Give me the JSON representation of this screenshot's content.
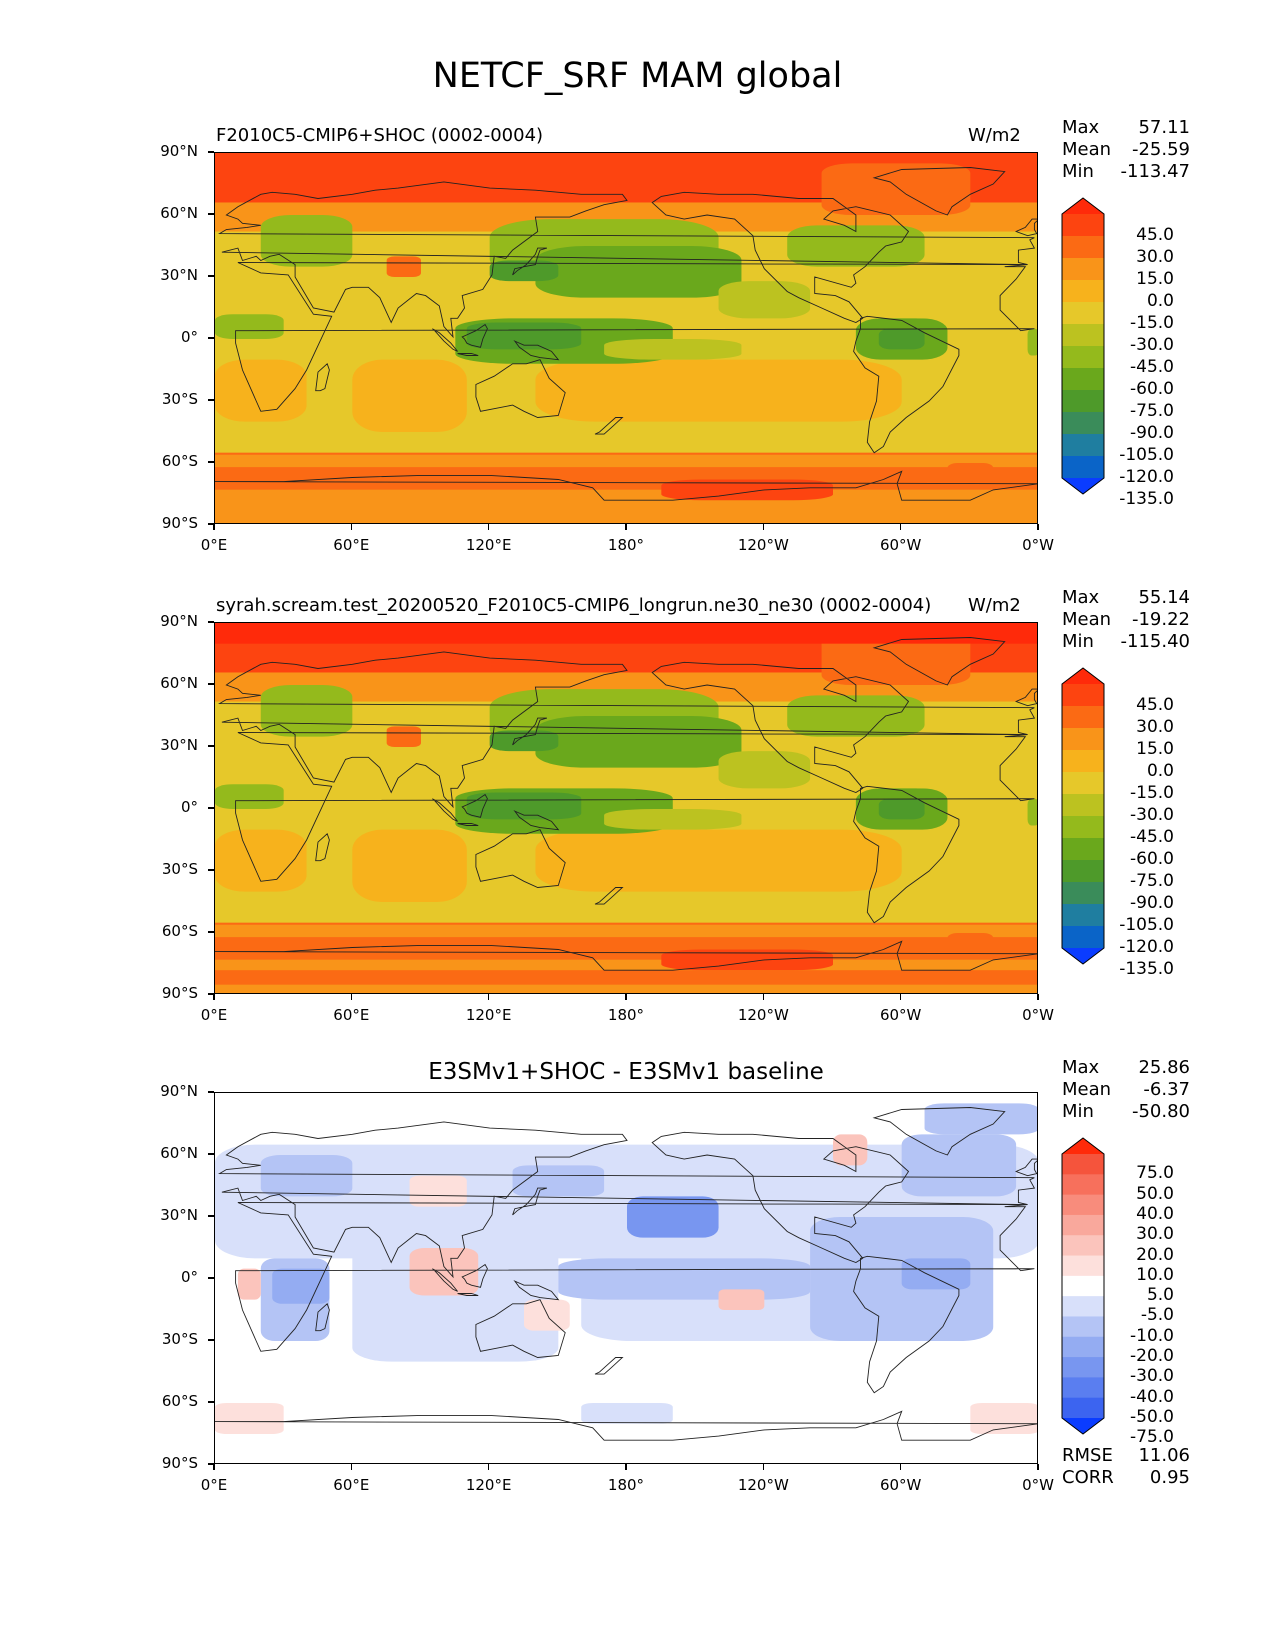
{
  "figure": {
    "suptitle": "NETCF_SRF MAM global"
  },
  "axes": {
    "x_ticks": [
      "0°E",
      "60°E",
      "120°E",
      "180°",
      "120°W",
      "60°W",
      "0°W"
    ],
    "y_ticks": [
      "90°N",
      "60°N",
      "30°N",
      "0°",
      "30°S",
      "60°S",
      "90°S"
    ]
  },
  "panels": [
    {
      "title": "F2010C5-CMIP6+SHOC (0002-0004)",
      "units": "W/m2",
      "stats": {
        "max_label": "Max",
        "max": "57.11",
        "mean_label": "Mean",
        "mean": "-25.59",
        "min_label": "Min",
        "min": "-113.47"
      },
      "colorbar_labels": [
        "45.0",
        "30.0",
        "15.0",
        "0.0",
        "-15.0",
        "-30.0",
        "-45.0",
        "-60.0",
        "-75.0",
        "-90.0",
        "-105.0",
        "-120.0",
        "-135.0"
      ]
    },
    {
      "title": "syrah.scream.test_20200520_F2010C5-CMIP6_longrun.ne30_ne30 (0002-0004)",
      "units": "W/m2",
      "stats": {
        "max_label": "Max",
        "max": "55.14",
        "mean_label": "Mean",
        "mean": "-19.22",
        "min_label": "Min",
        "min": "-115.40"
      },
      "colorbar_labels": [
        "45.0",
        "30.0",
        "15.0",
        "0.0",
        "-15.0",
        "-30.0",
        "-45.0",
        "-60.0",
        "-75.0",
        "-90.0",
        "-105.0",
        "-120.0",
        "-135.0"
      ]
    },
    {
      "title": "E3SMv1+SHOC - E3SMv1 baseline",
      "units": "",
      "stats": {
        "max_label": "Max",
        "max": "25.86",
        "mean_label": "Mean",
        "mean": "-6.37",
        "min_label": "Min",
        "min": "-50.80"
      },
      "colorbar_labels": [
        "75.0",
        "50.0",
        "40.0",
        "30.0",
        "20.0",
        "10.0",
        "5.0",
        "-5.0",
        "-10.0",
        "-20.0",
        "-30.0",
        "-40.0",
        "-50.0",
        "-75.0"
      ],
      "metrics": {
        "rmse_label": "RMSE",
        "rmse": "11.06",
        "corr_label": "CORR",
        "corr": "0.95"
      }
    }
  ],
  "chart_data": [
    {
      "type": "heatmap",
      "title": "F2010C5-CMIP6+SHOC (0002-0004)",
      "variable": "NETCF_SRF",
      "season": "MAM",
      "region": "global",
      "units": "W/m2",
      "x_range": [
        0,
        360
      ],
      "y_range": [
        -90,
        90
      ],
      "contour_levels": [
        -135,
        -120,
        -105,
        -90,
        -75,
        -60,
        -45,
        -30,
        -15,
        0,
        15,
        30,
        45
      ],
      "colors": [
        "#0a3cff",
        "#0a64c8",
        "#1f7ea0",
        "#3a8c5a",
        "#4e9a2a",
        "#6aa81c",
        "#94ba1c",
        "#bcc220",
        "#e6c82a",
        "#f7b21c",
        "#f99419",
        "#fb6a14",
        "#fd4410",
        "#ff2a0a"
      ],
      "stats": {
        "max": 57.11,
        "mean": -25.59,
        "min": -113.47
      }
    },
    {
      "type": "heatmap",
      "title": "syrah.scream.test_20200520_F2010C5-CMIP6_longrun.ne30_ne30 (0002-0004)",
      "units": "W/m2",
      "x_range": [
        0,
        360
      ],
      "y_range": [
        -90,
        90
      ],
      "contour_levels": [
        -135,
        -120,
        -105,
        -90,
        -75,
        -60,
        -45,
        -30,
        -15,
        0,
        15,
        30,
        45
      ],
      "colors": [
        "#0a3cff",
        "#0a64c8",
        "#1f7ea0",
        "#3a8c5a",
        "#4e9a2a",
        "#6aa81c",
        "#94ba1c",
        "#bcc220",
        "#e6c82a",
        "#f7b21c",
        "#f99419",
        "#fb6a14",
        "#fd4410",
        "#ff2a0a"
      ],
      "stats": {
        "max": 55.14,
        "mean": -19.22,
        "min": -115.4
      }
    },
    {
      "type": "heatmap",
      "title": "E3SMv1+SHOC - E3SMv1 baseline",
      "x_range": [
        0,
        360
      ],
      "y_range": [
        -90,
        90
      ],
      "contour_levels": [
        -75,
        -50,
        -40,
        -30,
        -20,
        -10,
        -5,
        5,
        10,
        20,
        30,
        40,
        50,
        75
      ],
      "colors": [
        "#0a3cff",
        "#3c64f0",
        "#5a7ef0",
        "#7896f0",
        "#94acf2",
        "#b4c4f5",
        "#d8e0fa",
        "#ffffff",
        "#fde0dc",
        "#fbc4bc",
        "#f9a89c",
        "#f88c7c",
        "#f7705c",
        "#f5543c",
        "#ff2a0a"
      ],
      "stats": {
        "max": 25.86,
        "mean": -6.37,
        "min": -50.8
      },
      "rmse": 11.06,
      "corr": 0.95
    }
  ]
}
